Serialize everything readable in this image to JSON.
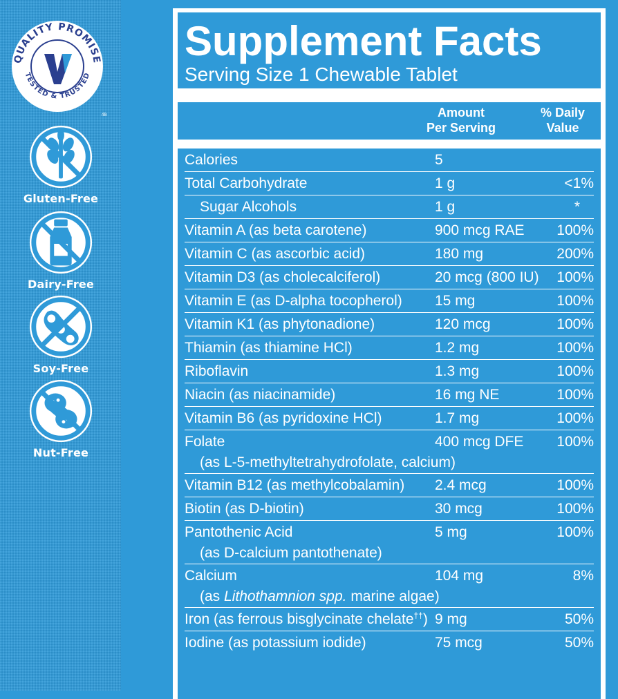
{
  "badges": {
    "seal": {
      "ring_top": "QUALITY PROMISE",
      "ring_bottom": "TESTED & TRUSTED",
      "mark": "®"
    },
    "items": [
      {
        "label": "Gluten-Free",
        "icon": "wheat-icon"
      },
      {
        "label": "Dairy-Free",
        "icon": "milk-bottle-icon"
      },
      {
        "label": "Soy-Free",
        "icon": "soybean-icon"
      },
      {
        "label": "Nut-Free",
        "icon": "peanut-icon"
      }
    ]
  },
  "facts": {
    "title": "Supplement Facts",
    "serving": "Serving Size 1 Chewable Tablet",
    "header_amount_1": "Amount",
    "header_amount_2": "Per Serving",
    "header_dv_1": "% Daily",
    "header_dv_2": "Value",
    "rows": [
      {
        "name": "Calories",
        "amount": "5",
        "dv": ""
      },
      {
        "name": "Total Carbohydrate",
        "amount": "1 g",
        "dv": "<1%"
      },
      {
        "name": "Sugar Alcohols",
        "amount": "1 g",
        "dv": "*"
      },
      {
        "name": "Vitamin A (as beta carotene)",
        "amount": "900 mcg RAE",
        "dv": "100%"
      },
      {
        "name": "Vitamin C (as ascorbic acid)",
        "amount": "180 mg",
        "dv": "200%"
      },
      {
        "name": "Vitamin D3 (as cholecalciferol)",
        "amount": "20 mcg (800 IU)",
        "dv": "100%"
      },
      {
        "name": "Vitamin E (as D-alpha tocopherol)",
        "amount": "15 mg",
        "dv": "100%"
      },
      {
        "name": "Vitamin K1 (as phytonadione)",
        "amount": "120 mcg",
        "dv": "100%"
      },
      {
        "name": "Thiamin (as thiamine HCl)",
        "amount": "1.2 mg",
        "dv": "100%"
      },
      {
        "name": "Riboflavin",
        "amount": "1.3 mg",
        "dv": "100%"
      },
      {
        "name": "Niacin (as niacinamide)",
        "amount": "16 mg NE",
        "dv": "100%"
      },
      {
        "name": "Vitamin B6 (as pyridoxine HCl)",
        "amount": "1.7 mg",
        "dv": "100%"
      },
      {
        "name": "Folate",
        "sub": "(as L-5-methyltetrahydrofolate, calcium)",
        "amount": "400 mcg DFE",
        "dv": "100%"
      },
      {
        "name": "Vitamin B12 (as methylcobalamin)",
        "amount": "2.4 mcg",
        "dv": "100%"
      },
      {
        "name": "Biotin (as D-biotin)",
        "amount": "30 mcg",
        "dv": "100%"
      },
      {
        "name": "Pantothenic Acid",
        "sub": "(as D-calcium pantothenate)",
        "amount": "5 mg",
        "dv": "100%"
      },
      {
        "name": "Calcium",
        "sub_pre": "(as ",
        "sub_em": "Lithothamnion spp.",
        "sub_post": " marine algae)",
        "amount": "104 mg",
        "dv": "8%"
      },
      {
        "name": "Iron (as ferrous bisglycinate chelate",
        "name_sup": "††",
        "name_post": ")",
        "amount": "9 mg",
        "dv": "50%"
      },
      {
        "name": "Iodine (as potassium iodide)",
        "amount": "75 mcg",
        "dv": "50%"
      }
    ]
  },
  "colors": {
    "background": "#2f9ad8",
    "text": "#ffffff",
    "seal_v": "#2a3f8f"
  }
}
